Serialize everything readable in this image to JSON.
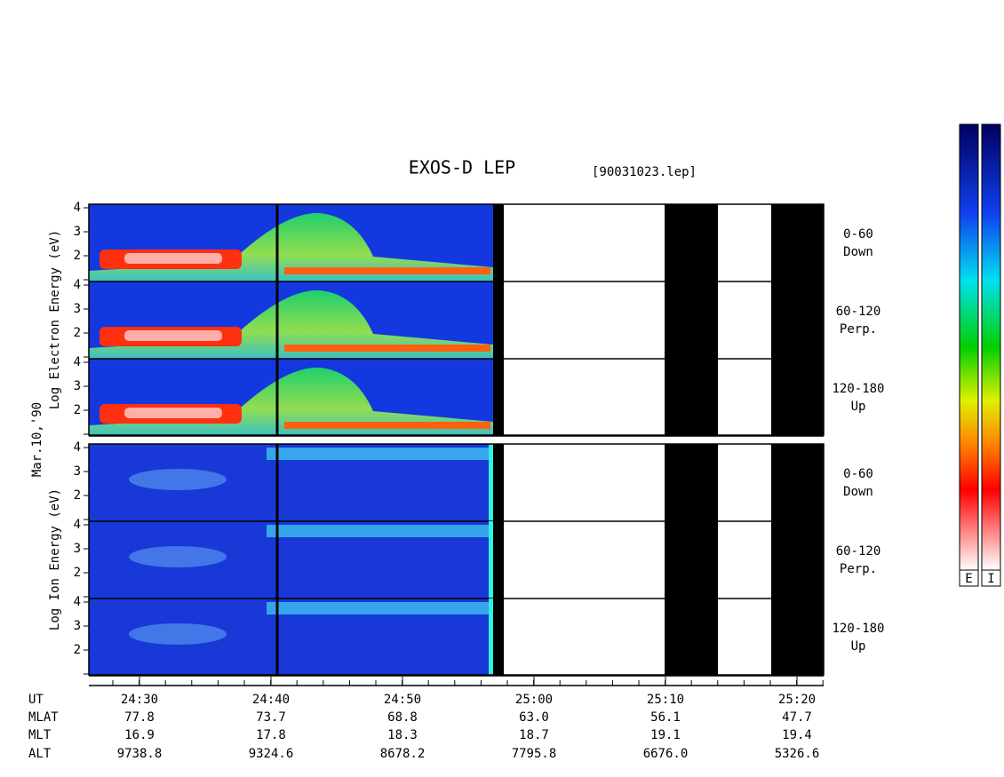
{
  "title": "EXOS-D LEP",
  "file": "[90031023.lep]",
  "date": "Mar.10,'90",
  "yticks": [
    2,
    3,
    4
  ],
  "panels": [
    {
      "label": "Log Electron Energy (eV)",
      "channels": [
        {
          "range": "0-60",
          "direction": "Down"
        },
        {
          "range": "60-120",
          "direction": "Perp."
        },
        {
          "range": "120-180",
          "direction": "Up"
        }
      ]
    },
    {
      "label": "Log Ion Energy (eV)",
      "channels": [
        {
          "range": "0-60",
          "direction": "Down"
        },
        {
          "range": "60-120",
          "direction": "Perp."
        },
        {
          "range": "120-180",
          "direction": "Up"
        }
      ]
    }
  ],
  "table": {
    "rows": [
      {
        "name": "UT",
        "values": [
          "24:30",
          "24:40",
          "24:50",
          "25:00",
          "25:10",
          "25:20"
        ]
      },
      {
        "name": "MLAT",
        "values": [
          "77.8",
          "73.7",
          "68.8",
          "63.0",
          "56.1",
          "47.7"
        ]
      },
      {
        "name": "MLT",
        "values": [
          "16.9",
          "17.8",
          "18.3",
          "18.7",
          "19.1",
          "19.4"
        ]
      },
      {
        "name": "ALT",
        "values": [
          "9738.8",
          "9324.6",
          "8678.2",
          "7795.8",
          "6676.0",
          "5326.6"
        ]
      }
    ]
  },
  "colorbar": {
    "labels": [
      "E",
      "I"
    ]
  }
}
